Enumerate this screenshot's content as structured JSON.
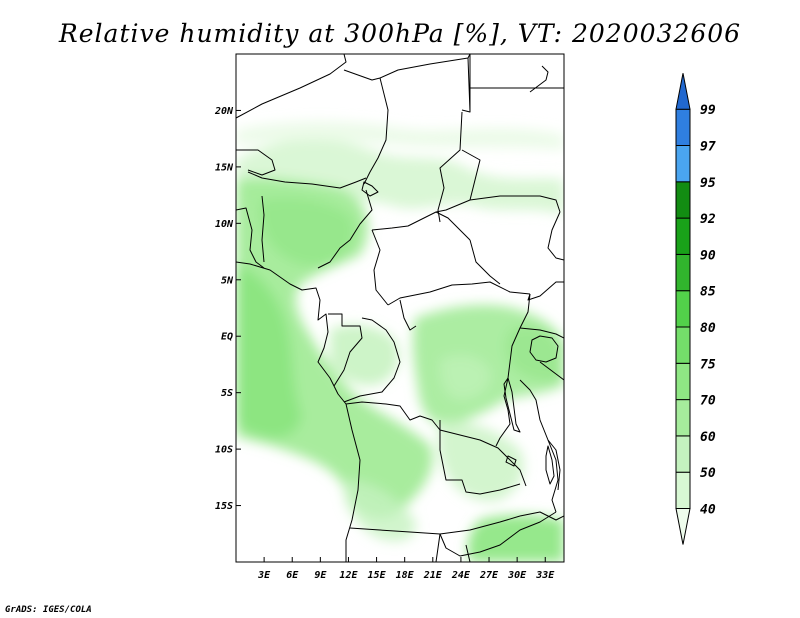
{
  "title": "Relative humidity at 300hPa [%], VT: 2020032606",
  "credit": "GrADS: IGES/COLA",
  "map": {
    "lon_range": [
      0,
      35
    ],
    "lat_range": [
      -20,
      25
    ],
    "lat_ticks": [
      "20N",
      "15N",
      "10N",
      "5N",
      "EQ",
      "5S",
      "10S",
      "15S"
    ],
    "lon_ticks": [
      "3E",
      "6E",
      "9E",
      "12E",
      "15E",
      "18E",
      "21E",
      "24E",
      "27E",
      "30E",
      "33E"
    ]
  },
  "colorbar": {
    "levels": [
      "40",
      "50",
      "60",
      "70",
      "75",
      "80",
      "85",
      "90",
      "92",
      "95",
      "97",
      "99"
    ],
    "colors": [
      "#eefcec",
      "#d8f8d4",
      "#c4f2bf",
      "#a6ec9c",
      "#8fe784",
      "#74de6a",
      "#52d14a",
      "#31b52d",
      "#19a219",
      "#128c12",
      "#4aa5f0",
      "#2f7fe0",
      "#2168cf"
    ]
  },
  "chart_data": {
    "type": "contour-map",
    "variable": "Relative humidity",
    "level": "300hPa",
    "unit": "%",
    "valid_time": "2020032606",
    "contour_levels": [
      40,
      50,
      60,
      70,
      75,
      80,
      85,
      90,
      92,
      95,
      97,
      99
    ]
  }
}
